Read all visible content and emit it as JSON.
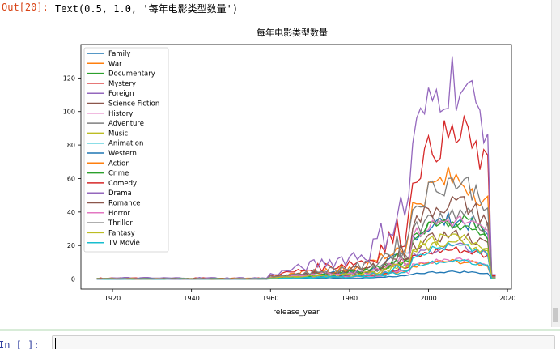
{
  "output": {
    "prompt": "Out[20]:",
    "text": "Text(0.5, 1.0, '每年电影类型数量')"
  },
  "input": {
    "prompt": "In [ ]:",
    "value": ""
  },
  "chart_data": {
    "type": "line",
    "title": "每年电影类型数量",
    "xlabel": "release_year",
    "ylabel": "",
    "xlim": [
      1912,
      2021
    ],
    "ylim": [
      -6,
      140
    ],
    "xticks": [
      1920,
      1940,
      1960,
      1980,
      2000,
      2020
    ],
    "yticks": [
      0,
      20,
      40,
      60,
      80,
      100,
      120
    ],
    "legend_position": "top-left",
    "grid": false,
    "series": [
      {
        "name": "Family",
        "color": "#1f77b4",
        "peak": 40
      },
      {
        "name": "War",
        "color": "#ff7f0e",
        "peak": 12
      },
      {
        "name": "Documentary",
        "color": "#2ca02c",
        "peak": 40
      },
      {
        "name": "Mystery",
        "color": "#d62728",
        "peak": 20
      },
      {
        "name": "Foreign",
        "color": "#9467bd",
        "peak": 22
      },
      {
        "name": "Science Fiction",
        "color": "#8c564b",
        "peak": 30
      },
      {
        "name": "History",
        "color": "#e377c2",
        "peak": 13
      },
      {
        "name": "Adventure",
        "color": "#7f7f7f",
        "peak": 45
      },
      {
        "name": "Music",
        "color": "#bcbd22",
        "peak": 25
      },
      {
        "name": "Animation",
        "color": "#17becf",
        "peak": 22
      },
      {
        "name": "Western",
        "color": "#1f77b4",
        "peak": 5
      },
      {
        "name": "Action",
        "color": "#ff7f0e",
        "peak": 68
      },
      {
        "name": "Crime",
        "color": "#2ca02c",
        "peak": 38
      },
      {
        "name": "Comedy",
        "color": "#d62728",
        "peak": 97
      },
      {
        "name": "Drama",
        "color": "#9467bd",
        "peak": 133
      },
      {
        "name": "Romance",
        "color": "#8c564b",
        "peak": 52
      },
      {
        "name": "Horror",
        "color": "#e377c2",
        "peak": 40
      },
      {
        "name": "Thriller",
        "color": "#7f7f7f",
        "peak": 67
      },
      {
        "name": "Fantasy",
        "color": "#bcbd22",
        "peak": 28
      },
      {
        "name": "TV Movie",
        "color": "#17becf",
        "peak": 12
      }
    ]
  }
}
